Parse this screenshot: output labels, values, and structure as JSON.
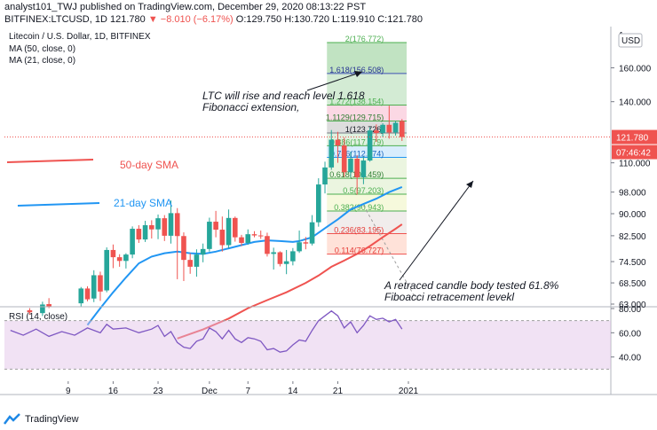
{
  "header": {
    "line1_prefix": "analyst101_TWJ published on TradingView.com, December 29, 2020 08:13:22 PST",
    "ticker": "BITFINEX:LTCUSD, 1D",
    "last": "121.780",
    "change": "▼ −8.010 (−6.17%)",
    "ohlc": "O:129.750 H:130.720 L:119.910 C:121.780"
  },
  "chart_data": {
    "type": "candlestick",
    "title": "Litecoin / U.S. Dollar, 1D, BITFINEX",
    "indicators_legend": [
      "MA (50, close, 0)",
      "MA (21, close, 0)"
    ],
    "currency_button": "USD",
    "yaxis": {
      "scale": "log",
      "range": [
        63,
        185
      ],
      "ticks": [
        "160.000",
        "140.000",
        "110.000",
        "98.000",
        "90.000",
        "82.500",
        "74.500",
        "68.500",
        "63.000"
      ],
      "top_tick_partial": "1"
    },
    "xaxis": {
      "ticks": [
        {
          "label": "9",
          "day": 9
        },
        {
          "label": "16",
          "day": 16
        },
        {
          "label": "23",
          "day": 23
        },
        {
          "label": "Dec",
          "day": 31
        },
        {
          "label": "7",
          "day": 37
        },
        {
          "label": "14",
          "day": 44
        },
        {
          "label": "21",
          "day": 51
        },
        {
          "label": "2021",
          "day": 62
        }
      ],
      "note": "day index counted from Nov 1, 2020 = 1"
    },
    "price_labels": [
      {
        "text": "121.780",
        "value": 121.78,
        "kind": "last_price"
      },
      {
        "text": "07:46:42",
        "value": 117.5,
        "kind": "countdown"
      }
    ],
    "candles": [
      {
        "day": 3,
        "o": 61.5,
        "h": 62.0,
        "l": 60.4,
        "c": 61.0
      },
      {
        "day": 5,
        "o": 60.8,
        "h": 63.6,
        "l": 60.1,
        "c": 62.9
      },
      {
        "day": 6,
        "o": 63.0,
        "h": 64.5,
        "l": 62.0,
        "c": 62.3
      },
      {
        "day": 11,
        "o": 63.2,
        "h": 67.4,
        "l": 62.4,
        "c": 67.0
      },
      {
        "day": 12,
        "o": 67.0,
        "h": 67.6,
        "l": 63.7,
        "c": 64.2
      },
      {
        "day": 13,
        "o": 64.4,
        "h": 72.0,
        "l": 63.5,
        "c": 70.6
      },
      {
        "day": 14,
        "o": 70.6,
        "h": 71.6,
        "l": 63.8,
        "c": 66.2
      },
      {
        "day": 15,
        "o": 66.5,
        "h": 78.8,
        "l": 66.0,
        "c": 78.0
      },
      {
        "day": 16,
        "o": 78.0,
        "h": 79.7,
        "l": 72.6,
        "c": 75.8
      },
      {
        "day": 17,
        "o": 75.8,
        "h": 76.7,
        "l": 73.0,
        "c": 74.7
      },
      {
        "day": 18,
        "o": 74.7,
        "h": 77.0,
        "l": 72.5,
        "c": 76.6
      },
      {
        "day": 19,
        "o": 76.6,
        "h": 85.6,
        "l": 75.5,
        "c": 84.8
      },
      {
        "day": 20,
        "o": 84.8,
        "h": 86.0,
        "l": 80.2,
        "c": 81.3
      },
      {
        "day": 21,
        "o": 81.3,
        "h": 87.5,
        "l": 80.5,
        "c": 86.0
      },
      {
        "day": 22,
        "o": 86.0,
        "h": 87.7,
        "l": 81.6,
        "c": 84.6
      },
      {
        "day": 23,
        "o": 84.6,
        "h": 89.7,
        "l": 81.4,
        "c": 88.4
      },
      {
        "day": 24,
        "o": 88.4,
        "h": 89.5,
        "l": 80.8,
        "c": 82.5
      },
      {
        "day": 25,
        "o": 82.5,
        "h": 94.8,
        "l": 80.0,
        "c": 90.2
      },
      {
        "day": 26,
        "o": 90.2,
        "h": 92.0,
        "l": 69.5,
        "c": 82.4
      },
      {
        "day": 27,
        "o": 82.4,
        "h": 83.6,
        "l": 69.0,
        "c": 75.0
      },
      {
        "day": 28,
        "o": 75.0,
        "h": 77.0,
        "l": 71.0,
        "c": 73.0
      },
      {
        "day": 29,
        "o": 73.0,
        "h": 78.2,
        "l": 70.2,
        "c": 76.6
      },
      {
        "day": 30,
        "o": 76.6,
        "h": 80.0,
        "l": 74.3,
        "c": 78.3
      },
      {
        "day": 31,
        "o": 78.3,
        "h": 88.6,
        "l": 77.5,
        "c": 87.2
      },
      {
        "day": 32,
        "o": 87.2,
        "h": 91.0,
        "l": 82.0,
        "c": 84.5
      },
      {
        "day": 33,
        "o": 84.5,
        "h": 89.0,
        "l": 77.5,
        "c": 79.5
      },
      {
        "day": 34,
        "o": 79.5,
        "h": 91.5,
        "l": 78.5,
        "c": 88.5
      },
      {
        "day": 35,
        "o": 88.5,
        "h": 89.0,
        "l": 80.6,
        "c": 82.0
      },
      {
        "day": 36,
        "o": 82.0,
        "h": 82.8,
        "l": 79.2,
        "c": 80.2
      },
      {
        "day": 37,
        "o": 80.2,
        "h": 84.6,
        "l": 79.6,
        "c": 83.0
      },
      {
        "day": 38,
        "o": 83.0,
        "h": 84.0,
        "l": 82.0,
        "c": 82.6
      },
      {
        "day": 39,
        "o": 82.6,
        "h": 84.2,
        "l": 81.5,
        "c": 82.4
      },
      {
        "day": 40,
        "o": 82.4,
        "h": 83.5,
        "l": 76.0,
        "c": 76.8
      },
      {
        "day": 41,
        "o": 76.8,
        "h": 78.7,
        "l": 72.2,
        "c": 77.3
      },
      {
        "day": 42,
        "o": 77.3,
        "h": 77.6,
        "l": 73.1,
        "c": 73.8
      },
      {
        "day": 43,
        "o": 73.8,
        "h": 78.0,
        "l": 70.9,
        "c": 74.6
      },
      {
        "day": 44,
        "o": 74.6,
        "h": 78.6,
        "l": 73.4,
        "c": 77.6
      },
      {
        "day": 45,
        "o": 77.6,
        "h": 84.2,
        "l": 77.1,
        "c": 80.4
      },
      {
        "day": 46,
        "o": 80.4,
        "h": 82.1,
        "l": 78.2,
        "c": 80.0
      },
      {
        "day": 47,
        "o": 80.0,
        "h": 89.5,
        "l": 79.4,
        "c": 87.0
      },
      {
        "day": 48,
        "o": 87.0,
        "h": 103.5,
        "l": 85.5,
        "c": 101.0
      },
      {
        "day": 49,
        "o": 101.0,
        "h": 110.5,
        "l": 97.5,
        "c": 108.0
      },
      {
        "day": 50,
        "o": 108.0,
        "h": 125.2,
        "l": 107.0,
        "c": 120.5
      },
      {
        "day": 51,
        "o": 120.5,
        "h": 124.3,
        "l": 110.0,
        "c": 117.8
      },
      {
        "day": 52,
        "o": 117.8,
        "h": 121.5,
        "l": 104.1,
        "c": 106.0
      },
      {
        "day": 53,
        "o": 106.0,
        "h": 115.0,
        "l": 103.9,
        "c": 111.8
      },
      {
        "day": 54,
        "o": 111.8,
        "h": 113.3,
        "l": 97.0,
        "c": 103.9
      },
      {
        "day": 55,
        "o": 103.9,
        "h": 112.8,
        "l": 101.1,
        "c": 111.0
      },
      {
        "day": 56,
        "o": 111.0,
        "h": 126.5,
        "l": 110.5,
        "c": 125.0
      },
      {
        "day": 57,
        "o": 125.0,
        "h": 128.0,
        "l": 119.5,
        "c": 123.7
      },
      {
        "day": 58,
        "o": 123.7,
        "h": 128.6,
        "l": 121.8,
        "c": 127.8
      },
      {
        "day": 59,
        "o": 127.8,
        "h": 137.8,
        "l": 121.0,
        "c": 124.0
      },
      {
        "day": 60,
        "o": 124.0,
        "h": 129.8,
        "l": 122.5,
        "c": 128.8
      },
      {
        "day": 61,
        "o": 129.75,
        "h": 130.72,
        "l": 119.91,
        "c": 121.78
      }
    ],
    "ma21": {
      "label": "21-day SMA",
      "color": "#2196f3",
      "points": [
        [
          12,
          58
        ],
        [
          14,
          62
        ],
        [
          16,
          66
        ],
        [
          18,
          70
        ],
        [
          20,
          74
        ],
        [
          22,
          76
        ],
        [
          24,
          77
        ],
        [
          26,
          77.5
        ],
        [
          28,
          77
        ],
        [
          30,
          76.8
        ],
        [
          32,
          77.5
        ],
        [
          34,
          78.5
        ],
        [
          36,
          79.5
        ],
        [
          38,
          80.5
        ],
        [
          40,
          81
        ],
        [
          42,
          80.8
        ],
        [
          44,
          80.5
        ],
        [
          45,
          80.8
        ],
        [
          47,
          82
        ],
        [
          49,
          85
        ],
        [
          51,
          88
        ],
        [
          53,
          91.5
        ],
        [
          55,
          93.5
        ],
        [
          57,
          95.5
        ],
        [
          59,
          98
        ],
        [
          61,
          100
        ]
      ]
    },
    "ma50": {
      "label": "50-day SMA",
      "color": "#ef5350",
      "points": [
        [
          26,
          55
        ],
        [
          30,
          57
        ],
        [
          34,
          59.5
        ],
        [
          37,
          62
        ],
        [
          40,
          64
        ],
        [
          43,
          66
        ],
        [
          46,
          68.5
        ],
        [
          48,
          70.5
        ],
        [
          50,
          73
        ],
        [
          52,
          74.8
        ],
        [
          54,
          76.8
        ],
        [
          56,
          79.2
        ],
        [
          58,
          82
        ],
        [
          60,
          84.8
        ],
        [
          61,
          86.3
        ]
      ]
    },
    "fibonacci": {
      "levels": [
        {
          "label": "2(176.772)",
          "ratio": 2,
          "value": 176.772
        },
        {
          "label": "1.618(156.508)",
          "ratio": 1.618,
          "value": 156.508
        },
        {
          "label": "1.272(138.154)",
          "ratio": 1.272,
          "value": 138.154
        },
        {
          "label": "1.1129(129.715)",
          "ratio": 1.1129,
          "value": 129.715
        },
        {
          "label": "1(123.726)",
          "ratio": 1,
          "value": 123.726
        },
        {
          "label": "0.886(117.679)",
          "ratio": 0.886,
          "value": 117.679
        },
        {
          "label": "0.786(112.374)",
          "ratio": 0.786,
          "value": 112.374
        },
        {
          "label": "0.618(103.459)",
          "ratio": 0.618,
          "value": 103.459
        },
        {
          "label": "0.5(97.203)",
          "ratio": 0.5,
          "value": 97.203
        },
        {
          "label": "0.382(90.943)",
          "ratio": 0.382,
          "value": 90.943
        },
        {
          "label": "0.236(83.195)",
          "ratio": 0.236,
          "value": 83.195
        },
        {
          "label": "0.114(76.727)",
          "ratio": 0.114,
          "value": 76.727
        }
      ],
      "from_day": 50,
      "to_day": 62
    },
    "annotations": [
      {
        "text": "LTC will rise and reach level 1.618",
        "kind": "note"
      },
      {
        "text": "Fibonacci extension,",
        "kind": "note"
      },
      {
        "text": "A retraced candle body tested 61.8%",
        "kind": "note"
      },
      {
        "text": "Fiboacci retracement levekl",
        "kind": "note"
      },
      {
        "text": "50-day SMA",
        "kind": "legend",
        "color": "#ef5350"
      },
      {
        "text": "21-day SMA",
        "kind": "legend",
        "color": "#2196f3"
      }
    ],
    "rsi": {
      "label": "RSI (14, close)",
      "ylim": [
        20,
        80
      ],
      "ticks": [
        "80.00",
        "60.00",
        "40.00"
      ],
      "overbought": 70,
      "oversold": 30,
      "points": [
        [
          0,
          62
        ],
        [
          2,
          58
        ],
        [
          4,
          63
        ],
        [
          6,
          57
        ],
        [
          8,
          61
        ],
        [
          10,
          58
        ],
        [
          12,
          64
        ],
        [
          14,
          60
        ],
        [
          15,
          67
        ],
        [
          16,
          63
        ],
        [
          18,
          64
        ],
        [
          20,
          60
        ],
        [
          22,
          63
        ],
        [
          23,
          66
        ],
        [
          24,
          57
        ],
        [
          25,
          61
        ],
        [
          26,
          52
        ],
        [
          27,
          48
        ],
        [
          28,
          47
        ],
        [
          29,
          53
        ],
        [
          30,
          55
        ],
        [
          31,
          64
        ],
        [
          32,
          61
        ],
        [
          33,
          55
        ],
        [
          34,
          62
        ],
        [
          35,
          55
        ],
        [
          36,
          52
        ],
        [
          37,
          56
        ],
        [
          38,
          55
        ],
        [
          39,
          53
        ],
        [
          40,
          46
        ],
        [
          41,
          47
        ],
        [
          42,
          44
        ],
        [
          43,
          45
        ],
        [
          44,
          50
        ],
        [
          45,
          54
        ],
        [
          46,
          53
        ],
        [
          47,
          62
        ],
        [
          48,
          70
        ],
        [
          49,
          74
        ],
        [
          50,
          78
        ],
        [
          51,
          74
        ],
        [
          52,
          64
        ],
        [
          53,
          69
        ],
        [
          54,
          60
        ],
        [
          55,
          66
        ],
        [
          56,
          74
        ],
        [
          57,
          71
        ],
        [
          58,
          72
        ],
        [
          59,
          69
        ],
        [
          60,
          71
        ],
        [
          61,
          63
        ]
      ]
    }
  },
  "footer": {
    "brand": "TradingView"
  }
}
